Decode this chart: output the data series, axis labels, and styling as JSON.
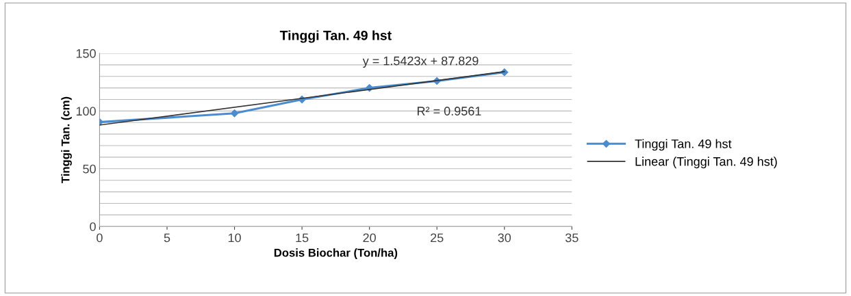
{
  "chart_data": {
    "type": "line",
    "title": "Tinggi Tan. 49 hst",
    "xlabel": "Dosis Biochar (Ton/ha)",
    "ylabel": "Tinggi Tan. (cm)",
    "x": [
      0,
      10,
      15,
      20,
      25,
      30
    ],
    "series": [
      {
        "name": "Tinggi Tan. 49 hst",
        "color": "#4a8cd0",
        "values": [
          90.4,
          98,
          110,
          120,
          126,
          133.6
        ],
        "marker": "diamond"
      },
      {
        "name": "Linear (Tinggi Tan. 49 hst)",
        "color": "#333333",
        "type": "line",
        "x": [
          0,
          30
        ],
        "values": [
          87.8,
          134.1
        ],
        "marker": "none"
      }
    ],
    "annotations": [
      "y = 1.5423x + 87.829",
      "R² = 0.9561"
    ],
    "xlim": [
      0,
      35
    ],
    "xticks": [
      0,
      5,
      10,
      15,
      20,
      25,
      30,
      35
    ],
    "ylim": [
      0,
      150
    ],
    "yticks": [
      0,
      {
        "value": 10,
        "label": null
      },
      {
        "value": 20,
        "label": null
      },
      {
        "value": 30,
        "label": null
      },
      {
        "value": 40,
        "label": null
      },
      50,
      {
        "value": 60,
        "label": null
      },
      {
        "value": 70,
        "label": null
      },
      {
        "value": 80,
        "label": null
      },
      {
        "value": 90,
        "label": null
      },
      100,
      {
        "value": 110,
        "label": null
      },
      {
        "value": 120,
        "label": null
      },
      {
        "value": 130,
        "label": null
      },
      {
        "value": 140,
        "label": null
      },
      150
    ],
    "grid": "y",
    "legend": "right",
    "line_style": "solid"
  }
}
